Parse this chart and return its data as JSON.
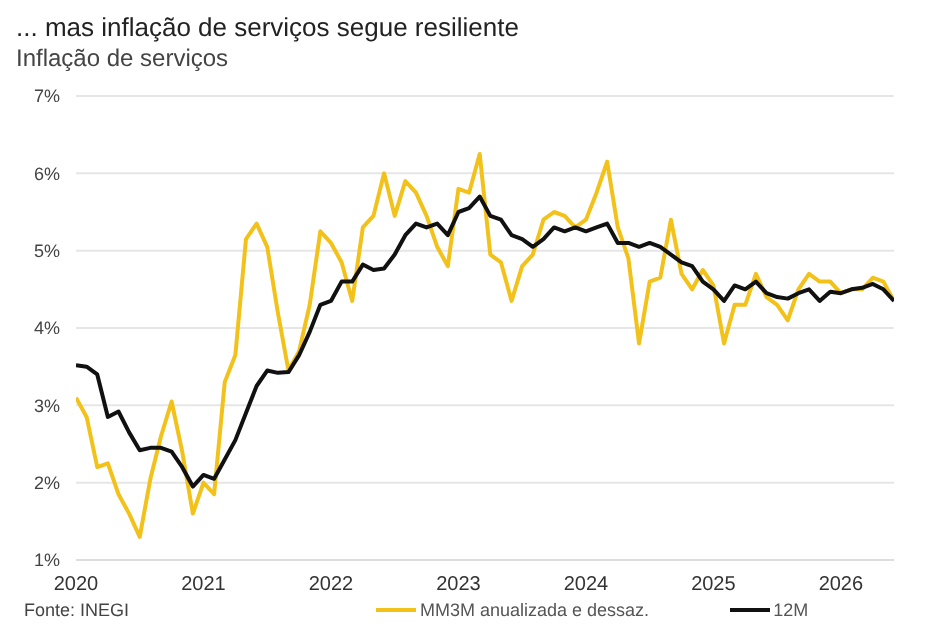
{
  "chart_data": {
    "type": "line",
    "title": "... mas inflação de serviços segue resiliente",
    "subtitle": "Inflação de serviços",
    "x": [
      "2020-01",
      "2020-02",
      "2020-03",
      "2020-04",
      "2020-05",
      "2020-06",
      "2020-07",
      "2020-08",
      "2020-09",
      "2020-10",
      "2020-11",
      "2020-12",
      "2021-01",
      "2021-02",
      "2021-03",
      "2021-04",
      "2021-05",
      "2021-06",
      "2021-07",
      "2021-08",
      "2021-09",
      "2021-10",
      "2021-11",
      "2021-12",
      "2022-01",
      "2022-02",
      "2022-03",
      "2022-04",
      "2022-05",
      "2022-06",
      "2022-07",
      "2022-08",
      "2022-09",
      "2022-10",
      "2022-11",
      "2022-12",
      "2023-01",
      "2023-02",
      "2023-03",
      "2023-04",
      "2023-05",
      "2023-06",
      "2023-07",
      "2023-08",
      "2023-09",
      "2023-10",
      "2023-11",
      "2023-12",
      "2024-01",
      "2024-02",
      "2024-03",
      "2024-04",
      "2024-05",
      "2024-06",
      "2024-07",
      "2024-08",
      "2024-09",
      "2024-10",
      "2024-11",
      "2024-12",
      "2025-01",
      "2025-02",
      "2025-03",
      "2025-04",
      "2025-05",
      "2025-06",
      "2025-07",
      "2025-08",
      "2025-09",
      "2025-10",
      "2025-11",
      "2025-12",
      "2026-01",
      "2026-02",
      "2026-03",
      "2026-04",
      "2026-05",
      "2026-06"
    ],
    "series": [
      {
        "name": "MM3M anualizada e dessaz.",
        "color": "#f2c21b",
        "values": [
          3.1,
          2.85,
          2.2,
          2.25,
          1.85,
          1.6,
          1.3,
          2.05,
          2.6,
          3.05,
          2.4,
          1.6,
          2.0,
          1.85,
          3.3,
          3.65,
          5.15,
          5.35,
          5.05,
          4.2,
          3.45,
          3.7,
          4.3,
          5.25,
          5.1,
          4.85,
          4.35,
          5.3,
          5.45,
          6.0,
          5.45,
          5.9,
          5.75,
          5.45,
          5.05,
          4.8,
          5.8,
          5.75,
          6.25,
          4.95,
          4.85,
          4.35,
          4.8,
          4.95,
          5.4,
          5.5,
          5.45,
          5.3,
          5.4,
          5.75,
          6.15,
          5.3,
          4.9,
          3.8,
          4.6,
          4.65,
          5.4,
          4.7,
          4.5,
          4.75,
          4.55,
          3.8,
          4.3,
          4.3,
          4.7,
          4.4,
          4.3,
          4.1,
          4.5,
          4.7,
          4.6,
          4.6,
          4.45,
          4.5,
          4.5,
          4.65,
          4.6,
          4.35
        ]
      },
      {
        "name": "12M",
        "color": "#111111",
        "values": [
          3.52,
          3.5,
          3.4,
          2.85,
          2.92,
          2.65,
          2.42,
          2.45,
          2.45,
          2.4,
          2.2,
          1.95,
          2.1,
          2.05,
          2.3,
          2.55,
          2.9,
          3.25,
          3.45,
          3.42,
          3.43,
          3.65,
          3.95,
          4.3,
          4.35,
          4.6,
          4.6,
          4.82,
          4.75,
          4.77,
          4.95,
          5.2,
          5.35,
          5.3,
          5.35,
          5.2,
          5.5,
          5.55,
          5.7,
          5.45,
          5.4,
          5.2,
          5.15,
          5.05,
          5.15,
          5.3,
          5.25,
          5.3,
          5.25,
          5.3,
          5.35,
          5.1,
          5.1,
          5.05,
          5.1,
          5.05,
          4.95,
          4.85,
          4.8,
          4.6,
          4.5,
          4.35,
          4.55,
          4.5,
          4.6,
          4.45,
          4.4,
          4.38,
          4.45,
          4.5,
          4.35,
          4.47,
          4.45,
          4.5,
          4.52,
          4.57,
          4.5,
          4.35
        ]
      }
    ],
    "xlim": [
      "2020-01",
      "2026-06"
    ],
    "xticks": [
      "2020",
      "2021",
      "2022",
      "2023",
      "2024",
      "2025",
      "2026"
    ],
    "ylim": [
      1,
      7
    ],
    "yticks": [
      {
        "value": 1,
        "label": "1%"
      },
      {
        "value": 2,
        "label": "2%"
      },
      {
        "value": 3,
        "label": "3%"
      },
      {
        "value": 4,
        "label": "4%"
      },
      {
        "value": 5,
        "label": "5%"
      },
      {
        "value": 6,
        "label": "6%"
      },
      {
        "value": 7,
        "label": "7%"
      }
    ],
    "grid": "y",
    "legend": "bottom",
    "marker": "none",
    "line_style": "solid",
    "annotations": [
      "Fonte: INEGI"
    ]
  }
}
